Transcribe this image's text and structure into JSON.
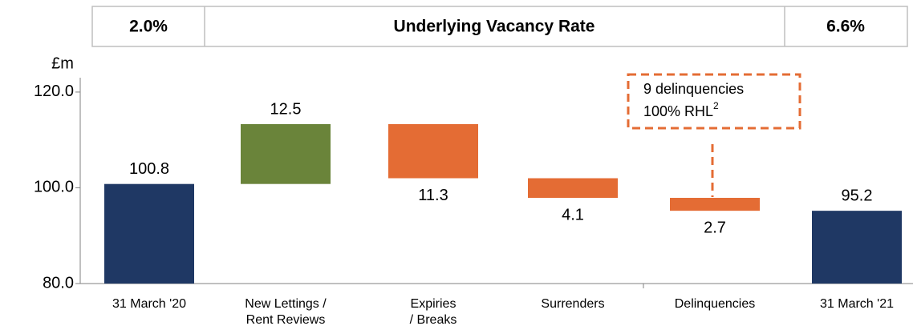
{
  "chart_data": {
    "type": "waterfall",
    "header": [
      "2.0%",
      "Underlying Vacancy Rate",
      "6.6%"
    ],
    "y_label": "£m",
    "categories": [
      [
        "31 March '20"
      ],
      [
        "New Lettings /",
        "Rent Reviews"
      ],
      [
        "Expiries",
        "/ Breaks"
      ],
      [
        "Surrenders"
      ],
      [
        "Delinquencies"
      ],
      [
        "31 March '21"
      ]
    ],
    "values": [
      100.8,
      12.5,
      11.3,
      4.1,
      2.7,
      95.2
    ],
    "kinds": [
      "total",
      "increase",
      "decrease",
      "decrease",
      "decrease",
      "total"
    ],
    "colors": {
      "total": "#1f3864",
      "increase": "#6a843a",
      "decrease": "#e46c34"
    },
    "ylim": [
      80,
      123
    ],
    "yticks": [
      {
        "value": 80,
        "label": "80.0"
      },
      {
        "value": 100,
        "label": "100.0"
      },
      {
        "value": 120,
        "label": "120.0"
      }
    ],
    "annotation": {
      "lines": [
        "9 delinquencies",
        "100% RHL"
      ],
      "superscript": "2"
    }
  }
}
